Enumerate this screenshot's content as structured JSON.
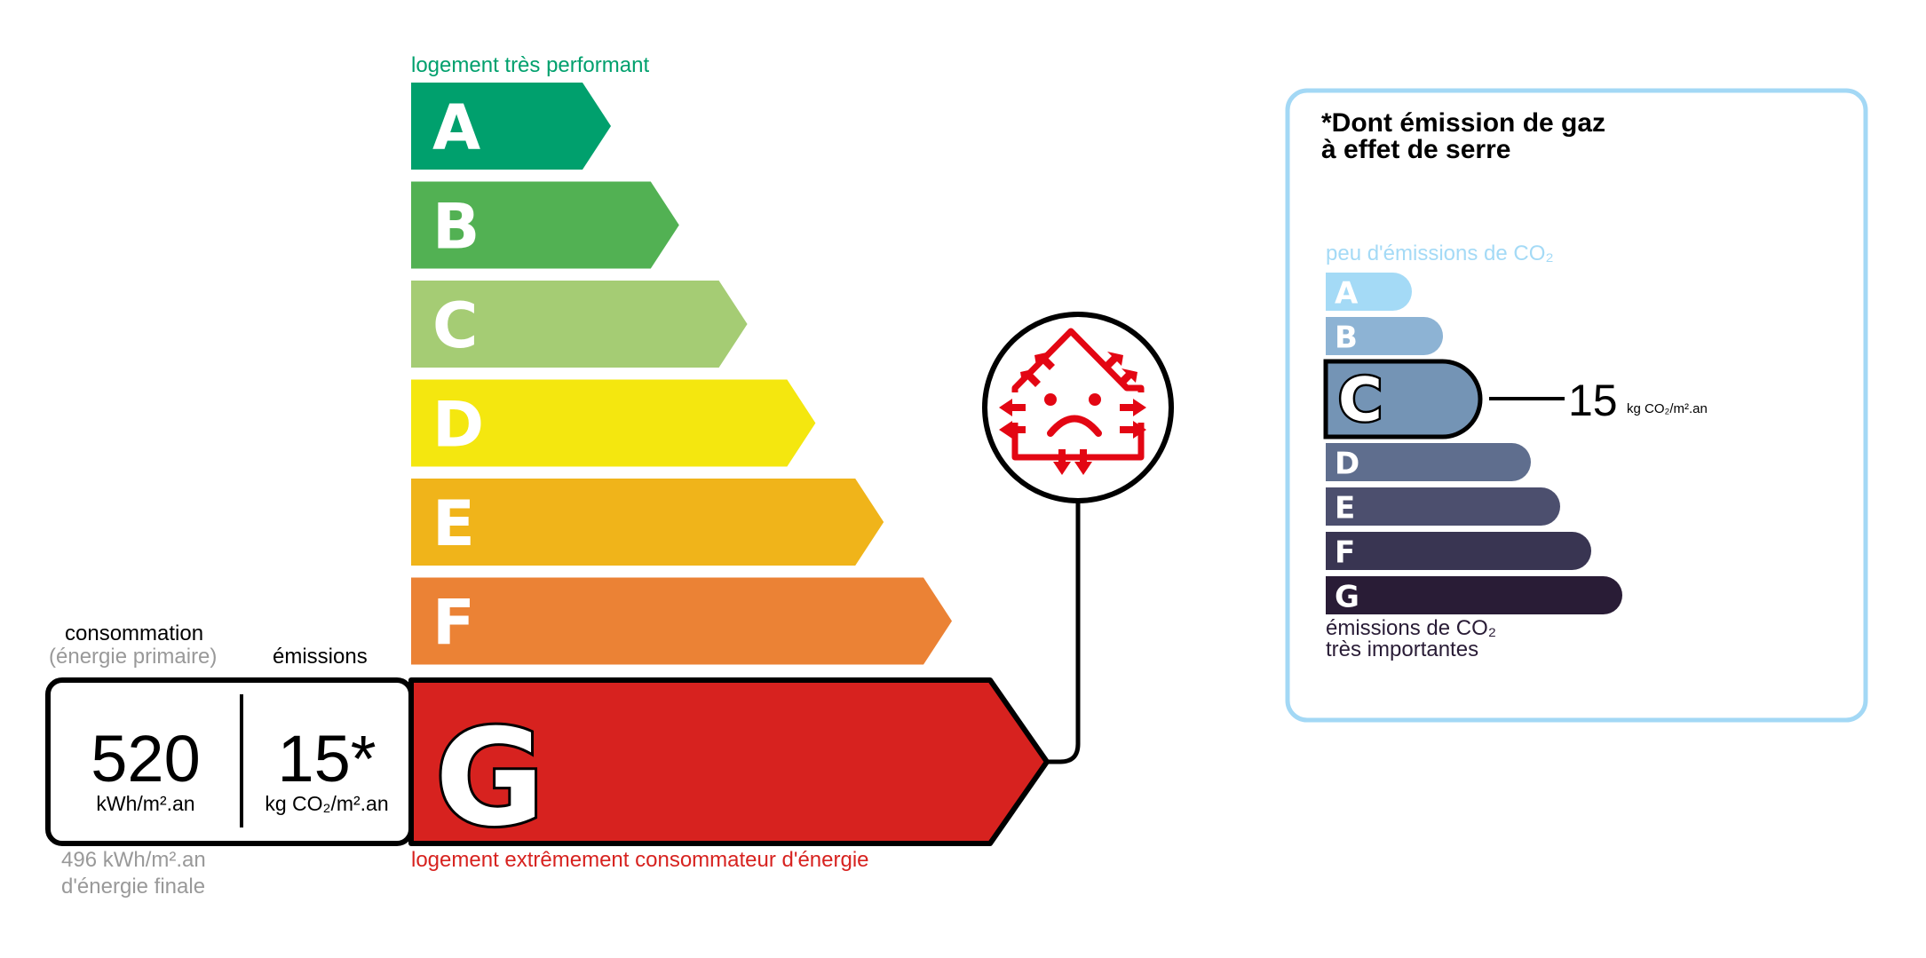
{
  "energy_label": {
    "top_caption": "logement très performant",
    "bottom_caption": "logement extrêmement consommateur d'énergie",
    "classes": [
      {
        "letter": "A",
        "color": "#00a06d"
      },
      {
        "letter": "B",
        "color": "#52b153"
      },
      {
        "letter": "C",
        "color": "#a5cc74"
      },
      {
        "letter": "D",
        "color": "#f4e70f"
      },
      {
        "letter": "E",
        "color": "#f0b41a"
      },
      {
        "letter": "F",
        "color": "#eb8235"
      },
      {
        "letter": "G",
        "color": "#d7221f"
      }
    ],
    "current_class": "G",
    "consumption_heading": "consommation",
    "consumption_subheading": "(énergie primaire)",
    "emissions_heading": "émissions",
    "consumption_value": "520",
    "consumption_unit": "kWh/m².an",
    "emissions_value": "15*",
    "emissions_unit": "kg CO₂/m².an",
    "final_energy_value": "496 kWh/m².an",
    "final_energy_label": "d'énergie finale",
    "icon": "sad-house-heat-loss-icon"
  },
  "ges_panel": {
    "title_line1": "*Dont émission de gaz",
    "title_line2": "à effet de serre",
    "top_caption": "peu d'émissions de CO₂",
    "bottom_caption_line1": "émissions de CO₂",
    "bottom_caption_line2": "très importantes",
    "border_color": "#a3d8f5",
    "classes": [
      {
        "letter": "A",
        "color": "#a4daf6"
      },
      {
        "letter": "B",
        "color": "#8db3d4"
      },
      {
        "letter": "C",
        "color": "#7494b5"
      },
      {
        "letter": "D",
        "color": "#5f6e8e"
      },
      {
        "letter": "E",
        "color": "#4c4f6e"
      },
      {
        "letter": "F",
        "color": "#393552"
      },
      {
        "letter": "G",
        "color": "#291c36"
      }
    ],
    "current_class": "C",
    "value": "15",
    "unit": "kg CO₂/m².an"
  }
}
